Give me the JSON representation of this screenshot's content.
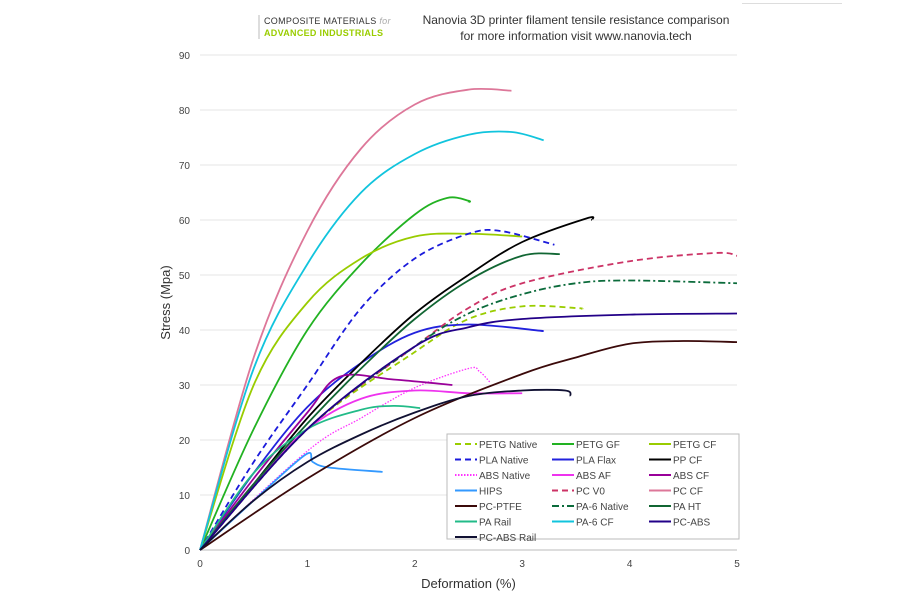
{
  "logo": {
    "line1": "COMPOSITE MATERIALS",
    "line1_suffix": "for",
    "line2": "ADVANCED INDUSTRIALS"
  },
  "chart_data": {
    "type": "line",
    "title": "Nanovia 3D printer filament  tensile resistance comparison",
    "subtitle": "for more information visit www.nanovia.tech",
    "xlabel": "Deformation (%)",
    "ylabel": "Stress  (Mpa)",
    "xlim": [
      0,
      5
    ],
    "ylim": [
      0,
      90
    ],
    "xticks": [
      0,
      1,
      2,
      3,
      4,
      5
    ],
    "yticks": [
      0,
      10,
      20,
      30,
      40,
      50,
      60,
      70,
      80,
      90
    ],
    "grid": "horizontal",
    "legend": "bottom-right",
    "series": [
      {
        "name": "PETG Native",
        "color": "#9acd00",
        "dash": "6,4",
        "points": [
          [
            0,
            0
          ],
          [
            1,
            22
          ],
          [
            2,
            36
          ],
          [
            2.5,
            42
          ],
          [
            3,
            44.3
          ],
          [
            3.5,
            44
          ],
          [
            3.56,
            43.8
          ]
        ]
      },
      {
        "name": "PETG GF",
        "color": "#22b222",
        "dash": "",
        "points": [
          [
            0,
            0
          ],
          [
            0.5,
            22
          ],
          [
            1,
            40
          ],
          [
            1.5,
            52
          ],
          [
            2,
            61
          ],
          [
            2.3,
            64
          ],
          [
            2.5,
            63.5
          ],
          [
            2.5,
            63.2
          ]
        ]
      },
      {
        "name": "PETG CF",
        "color": "#99cc00",
        "dash": "",
        "points": [
          [
            0,
            0
          ],
          [
            0.5,
            30
          ],
          [
            1,
            45
          ],
          [
            1.5,
            53
          ],
          [
            2,
            57
          ],
          [
            2.5,
            57.5
          ],
          [
            3,
            57
          ]
        ]
      },
      {
        "name": "PLA Native",
        "color": "#1a1adb",
        "dash": "6,4",
        "points": [
          [
            0,
            0
          ],
          [
            0.5,
            16
          ],
          [
            1,
            30
          ],
          [
            1.5,
            44
          ],
          [
            2,
            53
          ],
          [
            2.5,
            57.5
          ],
          [
            2.8,
            58
          ],
          [
            3.3,
            55.5
          ]
        ]
      },
      {
        "name": "PLA Flax",
        "color": "#2222dd",
        "dash": "",
        "points": [
          [
            0,
            0
          ],
          [
            0.5,
            14
          ],
          [
            1,
            26
          ],
          [
            1.5,
            34
          ],
          [
            2,
            39.5
          ],
          [
            2.5,
            41
          ],
          [
            3.2,
            39.8
          ]
        ]
      },
      {
        "name": "PP CF",
        "color": "#000000",
        "dash": "",
        "points": [
          [
            0,
            0
          ],
          [
            0.5,
            12
          ],
          [
            1,
            24
          ],
          [
            1.5,
            34
          ],
          [
            2,
            43
          ],
          [
            2.5,
            50
          ],
          [
            3,
            56
          ],
          [
            3.6,
            60.3
          ],
          [
            3.65,
            60
          ]
        ]
      },
      {
        "name": "ABS Native",
        "color": "#ff33ff",
        "dash": "1.5,1.5",
        "points": [
          [
            0,
            0
          ],
          [
            1,
            18
          ],
          [
            1.5,
            24
          ],
          [
            2,
            29.5
          ],
          [
            2.5,
            33
          ],
          [
            2.6,
            32.5
          ],
          [
            2.7,
            30.5
          ]
        ]
      },
      {
        "name": "ABS AF",
        "color": "#ee33ee",
        "dash": "",
        "points": [
          [
            0,
            0
          ],
          [
            0.5,
            12
          ],
          [
            1,
            22
          ],
          [
            1.5,
            27.5
          ],
          [
            2,
            29
          ],
          [
            2.5,
            28.5
          ],
          [
            3,
            28.5
          ]
        ]
      },
      {
        "name": "ABS CF",
        "color": "#990099",
        "dash": "",
        "points": [
          [
            0,
            0
          ],
          [
            0.5,
            13
          ],
          [
            1,
            25
          ],
          [
            1.3,
            31.5
          ],
          [
            1.8,
            31
          ],
          [
            2.35,
            30
          ]
        ]
      },
      {
        "name": "HIPS",
        "color": "#3399ff",
        "dash": "",
        "points": [
          [
            0,
            0
          ],
          [
            0.5,
            9
          ],
          [
            0.98,
            17.3
          ],
          [
            1.05,
            16
          ],
          [
            1.2,
            15
          ],
          [
            1.7,
            14.2
          ]
        ]
      },
      {
        "name": "PC V0",
        "color": "#cc3366",
        "dash": "6,4",
        "points": [
          [
            0,
            0
          ],
          [
            1,
            22
          ],
          [
            2,
            37
          ],
          [
            2.5,
            44
          ],
          [
            3,
            48.5
          ],
          [
            4,
            52.5
          ],
          [
            4.8,
            54
          ],
          [
            5,
            53.5
          ]
        ]
      },
      {
        "name": "PC CF",
        "color": "#dd7799",
        "dash": "",
        "points": [
          [
            0,
            0
          ],
          [
            0.5,
            35
          ],
          [
            1,
            58
          ],
          [
            1.5,
            73
          ],
          [
            2,
            81
          ],
          [
            2.5,
            83.7
          ],
          [
            2.9,
            83.5
          ]
        ]
      },
      {
        "name": "PC-PTFE",
        "color": "#3b0a0a",
        "dash": "",
        "points": [
          [
            0,
            0
          ],
          [
            1,
            13
          ],
          [
            2,
            24
          ],
          [
            3,
            32
          ],
          [
            3.5,
            35
          ],
          [
            4,
            37.5
          ],
          [
            4.5,
            38
          ],
          [
            5,
            37.8
          ]
        ]
      },
      {
        "name": "PA-6 Native",
        "color": "#0b6b3b",
        "dash": "7,3,2,3",
        "points": [
          [
            0,
            0
          ],
          [
            1,
            22
          ],
          [
            2,
            37
          ],
          [
            2.5,
            43
          ],
          [
            3,
            46.5
          ],
          [
            3.5,
            48.5
          ],
          [
            4,
            49
          ],
          [
            5,
            48.5
          ]
        ]
      },
      {
        "name": "PA HT",
        "color": "#116633",
        "dash": "",
        "points": [
          [
            0,
            0
          ],
          [
            0.5,
            12
          ],
          [
            1,
            23
          ],
          [
            1.5,
            33
          ],
          [
            2,
            42
          ],
          [
            2.5,
            49
          ],
          [
            3,
            53.5
          ],
          [
            3.35,
            53.8
          ]
        ]
      },
      {
        "name": "PA Rail",
        "color": "#22bb88",
        "dash": "",
        "points": [
          [
            0,
            0
          ],
          [
            0.5,
            14
          ],
          [
            1,
            22
          ],
          [
            1.5,
            25.5
          ],
          [
            1.8,
            26.2
          ],
          [
            2.05,
            25.8
          ]
        ]
      },
      {
        "name": "PA-6 CF",
        "color": "#11c4dd",
        "dash": "",
        "points": [
          [
            0,
            0
          ],
          [
            0.5,
            33
          ],
          [
            1,
            52
          ],
          [
            1.5,
            65
          ],
          [
            2,
            72
          ],
          [
            2.5,
            75.5
          ],
          [
            2.9,
            76
          ],
          [
            3.2,
            74.5
          ]
        ]
      },
      {
        "name": "PC-ABS",
        "color": "#220088",
        "dash": "",
        "points": [
          [
            0,
            0
          ],
          [
            1,
            22
          ],
          [
            2,
            37
          ],
          [
            2.5,
            40.5
          ],
          [
            3,
            42
          ],
          [
            4,
            42.8
          ],
          [
            5,
            43
          ]
        ]
      },
      {
        "name": "PC-ABS Rail",
        "color": "#111133",
        "dash": "",
        "points": [
          [
            0,
            0
          ],
          [
            0.5,
            9
          ],
          [
            1,
            16
          ],
          [
            1.5,
            21
          ],
          [
            2,
            25
          ],
          [
            2.5,
            28
          ],
          [
            3,
            29
          ],
          [
            3.4,
            29
          ],
          [
            3.45,
            28
          ]
        ]
      }
    ]
  }
}
